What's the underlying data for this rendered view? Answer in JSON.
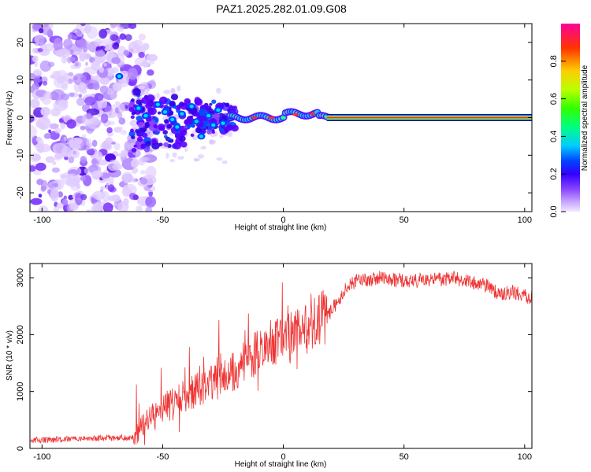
{
  "chart_data": [
    {
      "type": "heatmap",
      "title": "PAZ1.2025.282.01.09.G08",
      "xlabel": "Height of straight line (km)",
      "ylabel": "Frequency (Hz)",
      "xlim": [
        -105,
        103
      ],
      "ylim": [
        -25,
        25
      ],
      "xticks": [
        -100,
        -50,
        0,
        50,
        100
      ],
      "yticks": [
        -20,
        -10,
        0,
        10,
        20
      ],
      "colorbar": {
        "label": "Normalized spectral amplitude",
        "range": [
          0,
          1
        ],
        "ticks": [
          "0.0",
          "0.2",
          "0.4",
          "0.6",
          "0.8"
        ],
        "tick_values": [
          0,
          0.2,
          0.4,
          0.6,
          0.8
        ],
        "colors": [
          "#f3e8ff",
          "#a070ff",
          "#5500ff",
          "#0030ff",
          "#00d0ff",
          "#00ff60",
          "#b0ff00",
          "#ffd000",
          "#ff3000",
          "#ff0090"
        ]
      },
      "features": {
        "noise_region_x": [
          -105,
          -60
        ],
        "scattered_region_x": [
          -63,
          -20
        ],
        "converging_region_x": [
          -22,
          18
        ],
        "steady_line_x": [
          18,
          103
        ],
        "steady_line_frequency": 0,
        "peak_color": "#ff2a2a"
      }
    },
    {
      "type": "line",
      "title": "",
      "xlabel": "Height of straight line (km)",
      "ylabel": "SNR (10 * v/v)",
      "xlim": [
        -105,
        103
      ],
      "ylim": [
        0,
        3250
      ],
      "xticks": [
        -100,
        -50,
        0,
        50,
        100
      ],
      "yticks": [
        0,
        1000,
        2000,
        3000
      ],
      "series": [
        {
          "name": "SNR",
          "color": "#ee3333",
          "x": [
            -105,
            -90,
            -80,
            -70,
            -62,
            -57,
            -52,
            -47,
            -42,
            -37,
            -32,
            -27,
            -22,
            -17,
            -12,
            -7,
            -2,
            3,
            8,
            13,
            18,
            25,
            30,
            35,
            40,
            50,
            60,
            70,
            80,
            85,
            90,
            95,
            103
          ],
          "values": [
            150,
            160,
            170,
            180,
            200,
            450,
            650,
            800,
            900,
            1000,
            1100,
            1200,
            1300,
            1500,
            1650,
            1800,
            1900,
            1950,
            2100,
            2200,
            2300,
            2750,
            2950,
            2950,
            3000,
            2950,
            2950,
            3000,
            2900,
            2850,
            2700,
            2750,
            2650
          ]
        }
      ]
    }
  ]
}
